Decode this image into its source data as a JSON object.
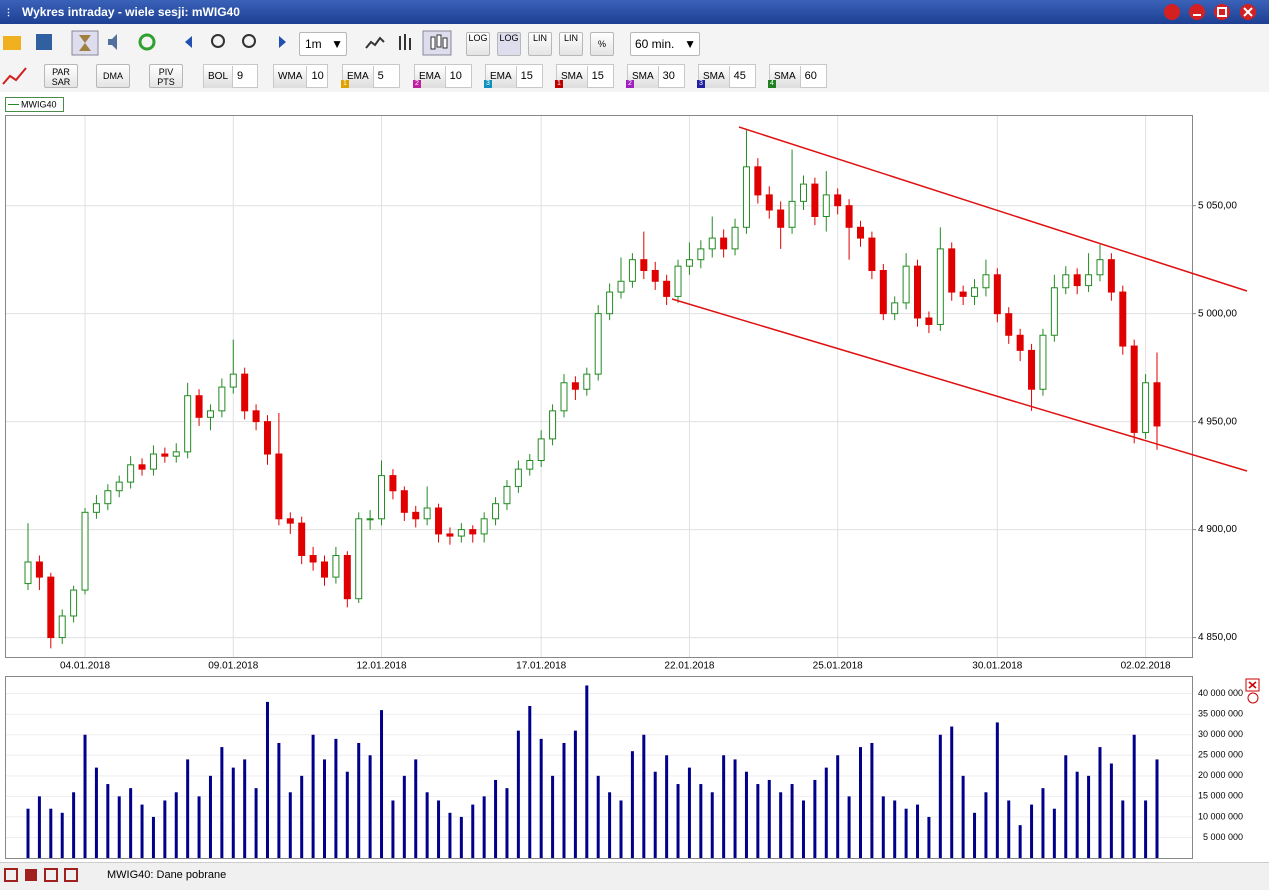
{
  "window": {
    "title": "Wykres intraday -  wiele sesji: mWIG40"
  },
  "toolbar": {
    "interval": "1m",
    "period": "60 min.",
    "scale_buttons": [
      "LOG",
      "LOG",
      "LIN",
      "LIN",
      "%"
    ]
  },
  "indicator_buttons": [
    [
      "PAR",
      "SAR"
    ],
    [
      "DMA"
    ],
    [
      "PIV",
      "PTS"
    ]
  ],
  "indicators": [
    {
      "label": "BOL",
      "param": 9
    },
    {
      "label": "WMA",
      "param": 10
    },
    {
      "label": "EMA",
      "param": 5,
      "badge": 1
    },
    {
      "label": "EMA",
      "param": 10,
      "badge": 2
    },
    {
      "label": "EMA",
      "param": 15,
      "badge": 3
    },
    {
      "label": "SMA",
      "param": 15,
      "badge": 1
    },
    {
      "label": "SMA",
      "param": 30,
      "badge": 2
    },
    {
      "label": "SMA",
      "param": 45,
      "badge": 3
    },
    {
      "label": "SMA",
      "param": 60,
      "badge": 4
    }
  ],
  "chart_data": [
    {
      "type": "candlestick",
      "legend": "MWIG40",
      "up_color": "#ffffff",
      "up_edge": "#228b22",
      "down_color": "#e00000",
      "grid": true,
      "categories": [
        null,
        null,
        null,
        null,
        null,
        "04.01.2018",
        null,
        null,
        null,
        null,
        null,
        null,
        null,
        null,
        null,
        null,
        null,
        null,
        "09.01.2018",
        null,
        null,
        null,
        null,
        null,
        null,
        null,
        null,
        null,
        null,
        null,
        null,
        "12.01.2018",
        null,
        null,
        null,
        null,
        null,
        null,
        null,
        null,
        null,
        null,
        null,
        null,
        null,
        "17.01.2018",
        null,
        null,
        null,
        null,
        null,
        null,
        null,
        null,
        null,
        null,
        null,
        null,
        "22.01.2018",
        null,
        null,
        null,
        null,
        null,
        null,
        null,
        null,
        null,
        null,
        null,
        null,
        "25.01.2018",
        null,
        null,
        null,
        null,
        null,
        null,
        null,
        null,
        null,
        null,
        null,
        null,
        null,
        "30.01.2018",
        null,
        null,
        null,
        null,
        null,
        null,
        null,
        null,
        null,
        null,
        null,
        null,
        "02.02.2018",
        null
      ],
      "open": [
        4875,
        4885,
        4878,
        4850,
        4860,
        4872,
        4908,
        4912,
        4918,
        4922,
        4930,
        4928,
        4935,
        4934,
        4936,
        4962,
        4952,
        4955,
        4966,
        4972,
        4955,
        4950,
        4935,
        4905,
        4903,
        4888,
        4885,
        4878,
        4888,
        4868,
        4905,
        4905,
        4925,
        4918,
        4908,
        4905,
        4910,
        4898,
        4897,
        4900,
        4898,
        4905,
        4912,
        4920,
        4928,
        4932,
        4942,
        4955,
        4968,
        4965,
        4972,
        5000,
        5010,
        5015,
        5025,
        5020,
        5015,
        5008,
        5022,
        5025,
        5030,
        5035,
        5030,
        5040,
        5068,
        5055,
        5048,
        5040,
        5052,
        5060,
        5045,
        5055,
        5050,
        5040,
        5035,
        5020,
        5000,
        5005,
        5022,
        4998,
        4995,
        5030,
        5010,
        5008,
        5012,
        5018,
        5000,
        4990,
        4983,
        4965,
        4990,
        5012,
        5018,
        5013,
        5018,
        5025,
        5010,
        4985,
        4945,
        4968
      ],
      "high": [
        4903,
        4888,
        4880,
        4863,
        4874,
        4910,
        4916,
        4921,
        4925,
        4934,
        4933,
        4939,
        4938,
        4940,
        4968,
        4965,
        4958,
        4970,
        4988,
        4975,
        4958,
        4953,
        4954,
        4908,
        4906,
        4892,
        4888,
        4892,
        4890,
        4908,
        4909,
        4932,
        4928,
        4920,
        4911,
        4920,
        4912,
        4901,
        4903,
        4902,
        4908,
        4915,
        4923,
        4932,
        4935,
        4946,
        4958,
        4972,
        4971,
        4975,
        5004,
        5014,
        5026,
        5028,
        5038,
        5024,
        5018,
        5025,
        5033,
        5034,
        5045,
        5039,
        5044,
        5085,
        5072,
        5059,
        5052,
        5076,
        5064,
        5063,
        5066,
        5058,
        5053,
        5043,
        5038,
        5023,
        5008,
        5028,
        5025,
        5001,
        5040,
        5033,
        5013,
        5016,
        5025,
        5021,
        5003,
        4993,
        4986,
        4993,
        5018,
        5022,
        5021,
        5028,
        5032,
        5028,
        5013,
        4988,
        4972,
        4982
      ],
      "low": [
        4872,
        4872,
        4845,
        4847,
        4857,
        4870,
        4905,
        4909,
        4915,
        4919,
        4925,
        4925,
        4931,
        4931,
        4933,
        4948,
        4946,
        4952,
        4963,
        4951,
        4946,
        4930,
        4902,
        4898,
        4884,
        4881,
        4874,
        4875,
        4864,
        4866,
        4900,
        4902,
        4914,
        4904,
        4901,
        4902,
        4894,
        4893,
        4894,
        4894,
        4894,
        4902,
        4909,
        4917,
        4925,
        4929,
        4939,
        4952,
        4960,
        4962,
        4969,
        4997,
        5007,
        5012,
        5016,
        5011,
        5004,
        5005,
        5018,
        5021,
        5026,
        5026,
        5027,
        5037,
        5051,
        5044,
        5030,
        5037,
        5048,
        5041,
        5038,
        5046,
        5025,
        5031,
        5016,
        4997,
        4997,
        5002,
        4994,
        4991,
        4992,
        5006,
        5004,
        5004,
        5008,
        4996,
        4986,
        4978,
        4955,
        4962,
        4987,
        5009,
        5009,
        5010,
        5015,
        5006,
        4981,
        4940,
        4942,
        4937
      ],
      "close": [
        4885,
        4878,
        4850,
        4860,
        4872,
        4908,
        4912,
        4918,
        4922,
        4930,
        4928,
        4935,
        4934,
        4936,
        4962,
        4952,
        4955,
        4966,
        4972,
        4955,
        4950,
        4935,
        4905,
        4903,
        4888,
        4885,
        4878,
        4888,
        4868,
        4905,
        4905,
        4925,
        4918,
        4908,
        4905,
        4910,
        4898,
        4897,
        4900,
        4898,
        4905,
        4912,
        4920,
        4928,
        4932,
        4942,
        4955,
        4968,
        4965,
        4972,
        5000,
        5010,
        5015,
        5025,
        5020,
        5015,
        5008,
        5022,
        5025,
        5030,
        5035,
        5030,
        5040,
        5068,
        5055,
        5048,
        5040,
        5052,
        5060,
        5045,
        5055,
        5050,
        5040,
        5035,
        5020,
        5000,
        5005,
        5022,
        4998,
        4995,
        5030,
        5010,
        5008,
        5012,
        5018,
        5000,
        4990,
        4983,
        4965,
        4990,
        5012,
        5018,
        5013,
        5018,
        5025,
        5010,
        4985,
        4945,
        4968,
        4948
      ],
      "ylim": [
        4841,
        5092
      ],
      "yticks": [
        {
          "value": 4850,
          "label": "4 850,00"
        },
        {
          "value": 4900,
          "label": "4 900,00"
        },
        {
          "value": 4950,
          "label": "4 950,00"
        },
        {
          "value": 5000,
          "label": "5 000,00"
        },
        {
          "value": 5050,
          "label": "5 050,00"
        }
      ]
    },
    {
      "type": "bar",
      "color": "#00008b",
      "grid": true,
      "values": [
        12000000,
        15000000,
        12000000,
        11000000,
        16000000,
        30000000,
        22000000,
        18000000,
        15000000,
        17000000,
        13000000,
        10000000,
        14000000,
        16000000,
        24000000,
        15000000,
        20000000,
        27000000,
        22000000,
        24000000,
        17000000,
        38000000,
        28000000,
        16000000,
        20000000,
        30000000,
        24000000,
        29000000,
        21000000,
        28000000,
        25000000,
        36000000,
        14000000,
        20000000,
        24000000,
        16000000,
        14000000,
        11000000,
        10000000,
        13000000,
        15000000,
        19000000,
        17000000,
        31000000,
        37000000,
        29000000,
        20000000,
        28000000,
        31000000,
        42000000,
        20000000,
        16000000,
        14000000,
        26000000,
        30000000,
        21000000,
        25000000,
        18000000,
        22000000,
        18000000,
        16000000,
        25000000,
        24000000,
        21000000,
        18000000,
        19000000,
        16000000,
        18000000,
        14000000,
        19000000,
        22000000,
        25000000,
        15000000,
        27000000,
        28000000,
        15000000,
        14000000,
        12000000,
        13000000,
        10000000,
        30000000,
        32000000,
        20000000,
        11000000,
        16000000,
        33000000,
        14000000,
        8000000,
        13000000,
        17000000,
        12000000,
        25000000,
        21000000,
        20000000,
        27000000,
        23000000,
        14000000,
        30000000,
        14000000,
        24000000
      ],
      "ylim": [
        0,
        44300000
      ],
      "yticks": [
        {
          "value": 5000000,
          "label": "5 000 000"
        },
        {
          "value": 10000000,
          "label": "10 000 000"
        },
        {
          "value": 15000000,
          "label": "15 000 000"
        },
        {
          "value": 20000000,
          "label": "20 000 000"
        },
        {
          "value": 25000000,
          "label": "25 000 000"
        },
        {
          "value": 30000000,
          "label": "30 000 000"
        },
        {
          "value": 35000000,
          "label": "35 000 000"
        },
        {
          "value": 40000000,
          "label": "40 000 000"
        }
      ]
    }
  ],
  "status": "MWIG40: Dane pobrane"
}
